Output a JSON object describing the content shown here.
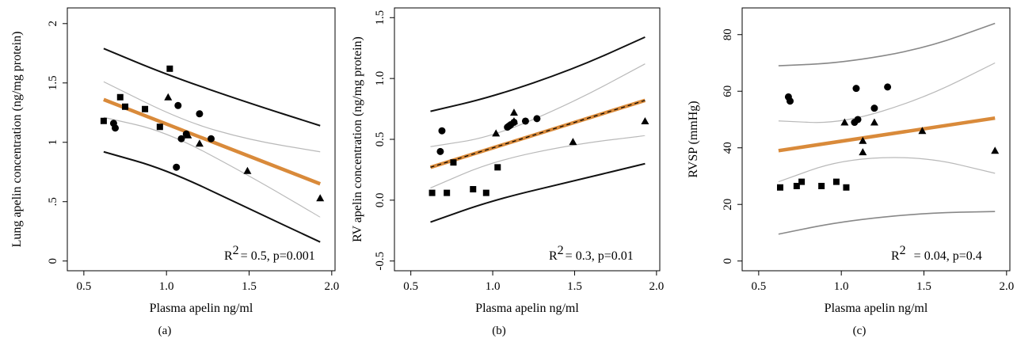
{
  "chart_data": [
    {
      "type": "scatter",
      "panel_label": "(a)",
      "xlabel": "Plasma apelin ng/ml",
      "ylabel": "Lung apelin concentration (ng/mg protein)",
      "xlim": [
        0.6,
        1.95
      ],
      "ylim": [
        0,
        2.05
      ],
      "x_ticks": [
        {
          "v": 0.5,
          "label": "0.5"
        },
        {
          "v": 1.0,
          "label": "1.0"
        },
        {
          "v": 1.5,
          "label": "1.5"
        },
        {
          "v": 2.0,
          "label": "2.0"
        }
      ],
      "y_ticks": [
        {
          "v": 0,
          "label": "0"
        },
        {
          "v": 0.5,
          "label": ".5"
        },
        {
          "v": 1,
          "label": "1"
        },
        {
          "v": 1.5,
          "label": "1.5"
        },
        {
          "v": 2,
          "label": "2"
        }
      ],
      "annotation": {
        "prefix": "R",
        "sup": "2",
        "text": "= 0.5, p=0.001"
      },
      "regression": {
        "x": [
          0.62,
          1.93
        ],
        "y": [
          1.36,
          0.65
        ],
        "color": "#d98a3a"
      },
      "ci": [
        {
          "x": [
            0.62,
            1.1,
            1.5,
            1.93
          ],
          "y": [
            1.51,
            1.18,
            1.02,
            0.92
          ]
        },
        {
          "x": [
            0.62,
            1.0,
            1.5,
            1.93
          ],
          "y": [
            1.21,
            1.09,
            0.72,
            0.37
          ]
        }
      ],
      "pi": [
        {
          "x": [
            0.62,
            1.0,
            1.5,
            1.93
          ],
          "y": [
            1.79,
            1.57,
            1.33,
            1.14
          ]
        },
        {
          "x": [
            0.62,
            1.0,
            1.5,
            1.93
          ],
          "y": [
            0.92,
            0.77,
            0.44,
            0.16
          ]
        }
      ],
      "series": [
        {
          "shape": "square",
          "points": [
            [
              0.62,
              1.18
            ],
            [
              0.72,
              1.38
            ],
            [
              0.75,
              1.3
            ],
            [
              0.87,
              1.28
            ],
            [
              0.96,
              1.13
            ],
            [
              1.02,
              1.62
            ]
          ]
        },
        {
          "shape": "circle",
          "points": [
            [
              0.68,
              1.16
            ],
            [
              0.69,
              1.12
            ],
            [
              1.06,
              0.79
            ],
            [
              1.07,
              1.31
            ],
            [
              1.09,
              1.03
            ],
            [
              1.12,
              1.07
            ],
            [
              1.2,
              1.24
            ],
            [
              1.27,
              1.03
            ]
          ]
        },
        {
          "shape": "triangle",
          "points": [
            [
              1.01,
              1.38
            ],
            [
              1.13,
              1.06
            ],
            [
              1.2,
              0.99
            ],
            [
              1.49,
              0.76
            ],
            [
              1.93,
              0.53
            ]
          ]
        }
      ]
    },
    {
      "type": "scatter",
      "panel_label": "(b)",
      "xlabel": "Plasma apelin ng/ml",
      "ylabel": "RV apelin concentration (ng/mg protein)",
      "xlim": [
        0.6,
        1.95
      ],
      "ylim": [
        -0.5,
        1.5
      ],
      "x_ticks": [
        {
          "v": 0.5,
          "label": "0.5"
        },
        {
          "v": 1.0,
          "label": "1.0"
        },
        {
          "v": 1.5,
          "label": "1.5"
        },
        {
          "v": 2.0,
          "label": "2.0"
        }
      ],
      "y_ticks": [
        {
          "v": -0.5,
          "label": "-0.5"
        },
        {
          "v": 0,
          "label": "0.0"
        },
        {
          "v": 0.5,
          "label": "0.5"
        },
        {
          "v": 1,
          "label": "1.0"
        },
        {
          "v": 1.5,
          "label": "1.5"
        }
      ],
      "annotation": {
        "prefix": "R",
        "sup": "2",
        "text": "= 0.3, p=0.01"
      },
      "regression": {
        "x": [
          0.62,
          1.93
        ],
        "y": [
          0.27,
          0.82
        ],
        "color": "#d98a3a"
      },
      "ci": [
        {
          "x": [
            0.62,
            1.0,
            1.5,
            1.93
          ],
          "y": [
            0.44,
            0.52,
            0.81,
            1.12
          ]
        },
        {
          "x": [
            0.62,
            1.0,
            1.5,
            1.93
          ],
          "y": [
            0.1,
            0.32,
            0.46,
            0.53
          ]
        }
      ],
      "pi": [
        {
          "x": [
            0.62,
            1.0,
            1.5,
            1.93
          ],
          "y": [
            0.73,
            0.85,
            1.08,
            1.34
          ]
        },
        {
          "x": [
            0.62,
            1.0,
            1.5,
            1.93
          ],
          "y": [
            -0.18,
            0.0,
            0.16,
            0.3
          ]
        }
      ],
      "series": [
        {
          "shape": "square",
          "points": [
            [
              0.63,
              0.06
            ],
            [
              0.72,
              0.06
            ],
            [
              0.76,
              0.31
            ],
            [
              0.88,
              0.09
            ],
            [
              0.96,
              0.06
            ],
            [
              1.03,
              0.27
            ]
          ]
        },
        {
          "shape": "circle",
          "points": [
            [
              0.68,
              0.4
            ],
            [
              0.69,
              0.57
            ],
            [
              1.09,
              0.6
            ],
            [
              1.1,
              0.61
            ],
            [
              1.11,
              0.62
            ],
            [
              1.13,
              0.64
            ],
            [
              1.2,
              0.65
            ],
            [
              1.27,
              0.67
            ]
          ]
        },
        {
          "shape": "triangle",
          "points": [
            [
              1.02,
              0.55
            ],
            [
              1.13,
              0.72
            ],
            [
              1.13,
              0.65
            ],
            [
              1.49,
              0.48
            ],
            [
              1.93,
              0.65
            ]
          ]
        }
      ]
    },
    {
      "type": "scatter",
      "panel_label": "(c)",
      "xlabel": "Plasma apelin ng/ml",
      "ylabel": "RVSP (mmHg)",
      "xlim": [
        0.6,
        1.95
      ],
      "ylim": [
        0,
        86
      ],
      "x_ticks": [
        {
          "v": 0.5,
          "label": "0.5"
        },
        {
          "v": 1.0,
          "label": "1.0"
        },
        {
          "v": 1.5,
          "label": "1.5"
        },
        {
          "v": 2.0,
          "label": "2.0"
        }
      ],
      "y_ticks": [
        {
          "v": 0,
          "label": "0"
        },
        {
          "v": 20,
          "label": "20"
        },
        {
          "v": 40,
          "label": "40"
        },
        {
          "v": 60,
          "label": "60"
        },
        {
          "v": 80,
          "label": "80"
        }
      ],
      "annotation": {
        "prefix": "R",
        "sup": "2",
        "text": "= 0.04, p=0.4"
      },
      "regression": {
        "x": [
          0.62,
          1.93
        ],
        "y": [
          39,
          50.5
        ],
        "color": "#d98a3a"
      },
      "ci": [
        {
          "x": [
            0.62,
            1.0,
            1.5,
            1.93
          ],
          "y": [
            49.5,
            48.5,
            57.5,
            70
          ]
        },
        {
          "x": [
            0.62,
            1.0,
            1.5,
            1.93
          ],
          "y": [
            28,
            36,
            37,
            31
          ]
        }
      ],
      "pi": [
        {
          "x": [
            0.62,
            1.0,
            1.5,
            1.93
          ],
          "y": [
            69,
            70,
            75,
            84
          ]
        },
        {
          "x": [
            0.62,
            1.0,
            1.5,
            1.93
          ],
          "y": [
            9.5,
            14,
            17,
            17.5
          ]
        }
      ],
      "series": [
        {
          "shape": "square",
          "points": [
            [
              0.63,
              26
            ],
            [
              0.73,
              26.5
            ],
            [
              0.76,
              28
            ],
            [
              0.88,
              26.5
            ],
            [
              0.97,
              28
            ],
            [
              1.03,
              26
            ]
          ]
        },
        {
          "shape": "circle",
          "points": [
            [
              0.68,
              58
            ],
            [
              0.69,
              56.5
            ],
            [
              1.08,
              49
            ],
            [
              1.09,
              61
            ],
            [
              1.1,
              50
            ],
            [
              1.2,
              54
            ],
            [
              1.28,
              61.5
            ]
          ]
        },
        {
          "shape": "triangle",
          "points": [
            [
              1.02,
              49
            ],
            [
              1.13,
              42.5
            ],
            [
              1.13,
              38.5
            ],
            [
              1.2,
              49
            ],
            [
              1.49,
              46
            ],
            [
              1.93,
              39
            ]
          ]
        }
      ]
    }
  ]
}
